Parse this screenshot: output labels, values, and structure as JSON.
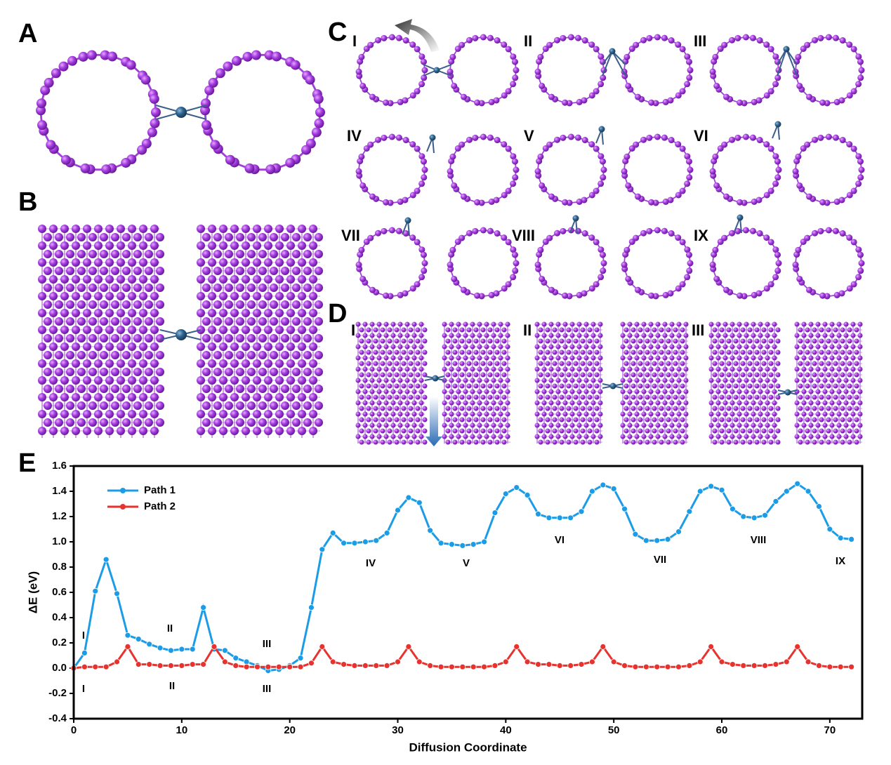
{
  "panels": {
    "labels": [
      "A",
      "B",
      "C",
      "D",
      "E"
    ],
    "c_steps": [
      "I",
      "II",
      "III",
      "IV",
      "V",
      "VI",
      "VII",
      "VIII",
      "IX"
    ],
    "d_steps": [
      "I",
      "II",
      "III"
    ]
  },
  "chart_data": {
    "type": "line",
    "x_label": "Diffusion Coordinate",
    "y_label": "ΔE (eV)",
    "xlim": [
      0,
      73
    ],
    "ylim": [
      -0.4,
      1.6
    ],
    "xticks": [
      0,
      10,
      20,
      30,
      40,
      50,
      60,
      70
    ],
    "yticks": [
      -0.4,
      -0.2,
      {
        "value": 0,
        "label": "0.0"
      },
      0.2,
      0.4,
      0.6,
      0.8,
      {
        "value": 1,
        "label": "1.0"
      },
      1.2,
      1.4,
      1.6
    ],
    "legend": "upper left",
    "x": [
      0,
      1,
      2,
      3,
      4,
      5,
      6,
      7,
      8,
      9,
      10,
      11,
      12,
      13,
      14,
      15,
      16,
      17,
      18,
      19,
      20,
      21,
      22,
      23,
      24,
      25,
      26,
      27,
      28,
      29,
      30,
      31,
      32,
      33,
      34,
      35,
      36,
      37,
      38,
      39,
      40,
      41,
      42,
      43,
      44,
      45,
      46,
      47,
      48,
      49,
      50,
      51,
      52,
      53,
      54,
      55,
      56,
      57,
      58,
      59,
      60,
      61,
      62,
      63,
      64,
      65,
      66,
      67,
      68,
      69,
      70,
      71,
      72
    ],
    "series": [
      {
        "name": "Path 1",
        "color": "#1c9ce6",
        "values": [
          0.0,
          0.12,
          0.61,
          0.86,
          0.59,
          0.26,
          0.23,
          0.19,
          0.16,
          0.14,
          0.15,
          0.15,
          0.48,
          0.15,
          0.14,
          0.08,
          0.05,
          0.02,
          -0.02,
          -0.01,
          0.02,
          0.08,
          0.48,
          0.94,
          1.07,
          0.99,
          0.99,
          1.0,
          1.01,
          1.07,
          1.25,
          1.35,
          1.31,
          1.09,
          0.99,
          0.98,
          0.97,
          0.98,
          1.0,
          1.23,
          1.38,
          1.43,
          1.37,
          1.22,
          1.19,
          1.19,
          1.19,
          1.24,
          1.4,
          1.45,
          1.42,
          1.26,
          1.06,
          1.01,
          1.01,
          1.02,
          1.08,
          1.24,
          1.4,
          1.44,
          1.41,
          1.26,
          1.2,
          1.19,
          1.21,
          1.32,
          1.4,
          1.46,
          1.4,
          1.28,
          1.1,
          1.03,
          1.02
        ]
      },
      {
        "name": "Path 2",
        "color": "#e8322e",
        "values": [
          0.0,
          0.01,
          0.01,
          0.01,
          0.05,
          0.17,
          0.03,
          0.03,
          0.02,
          0.02,
          0.02,
          0.03,
          0.03,
          0.17,
          0.05,
          0.02,
          0.01,
          0.01,
          0.01,
          0.01,
          0.01,
          0.01,
          0.04,
          0.17,
          0.05,
          0.03,
          0.02,
          0.02,
          0.02,
          0.02,
          0.05,
          0.17,
          0.05,
          0.02,
          0.01,
          0.01,
          0.01,
          0.01,
          0.01,
          0.02,
          0.05,
          0.17,
          0.05,
          0.03,
          0.03,
          0.02,
          0.02,
          0.03,
          0.05,
          0.17,
          0.05,
          0.02,
          0.01,
          0.01,
          0.01,
          0.01,
          0.01,
          0.02,
          0.05,
          0.17,
          0.05,
          0.03,
          0.02,
          0.02,
          0.02,
          0.03,
          0.05,
          0.17,
          0.05,
          0.02,
          0.01,
          0.01,
          0.01
        ]
      }
    ],
    "annotations": [
      "I",
      "II",
      "III",
      "IV",
      "V",
      "VI",
      "VII",
      "VIII",
      "IX",
      "I",
      "II",
      "III"
    ]
  }
}
